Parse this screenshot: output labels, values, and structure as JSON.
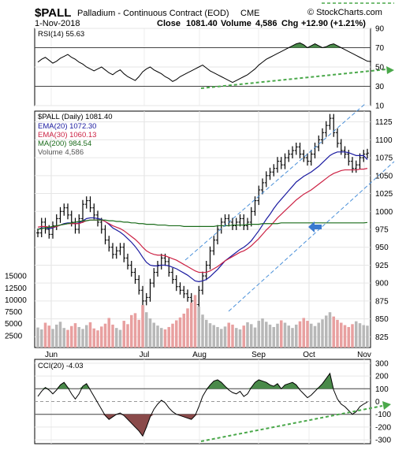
{
  "header": {
    "symbol": "$PALL",
    "description": "Palladium - Continuous Contract (EOD)",
    "exchange": "CME",
    "brand": "© StockCharts.com",
    "date": "1-Nov-2018",
    "close_label": "Close",
    "close_value": "1081.40",
    "volume_label": "Volume",
    "volume_value": "4,586",
    "chg_label": "Chg",
    "chg_value": "+12.90 (+1.21%)"
  },
  "panels": {
    "rsi_label": "RSI(14) 55.63",
    "price_label": "$PALL (Daily) 1081.40",
    "ema20_label": "EMA(20) 1072.30",
    "ema30_label": "EMA(30) 1060.13",
    "ma200_label": "MA(200) 984.54",
    "volume_label": "Volume 4,586",
    "cci_label": "CCI(20) -4.03"
  },
  "colors": {
    "price_bars": "#000000",
    "ema20": "#1a1aa0",
    "ema30": "#cc2244",
    "ma200": "#1a6b1a",
    "volume_bars": "#b8b8b8",
    "volume_down": "#e8a0a0",
    "overbought_fill": "#4a8a4a",
    "oversold_fill": "#8a4a4a",
    "trend_dashed": "#4a90d9",
    "support_dashed": "#4aa84a",
    "arrow": "#3a7ad0"
  },
  "chart_data": [
    {
      "type": "line",
      "name": "RSI(14)",
      "ylim": [
        10,
        90
      ],
      "yticks": [
        "90",
        "70",
        "50",
        "30",
        "10"
      ],
      "reference_lines": [
        70,
        30
      ],
      "last_value": 55.63,
      "y": [
        55,
        58,
        60,
        57,
        54,
        56,
        59,
        61,
        63,
        60,
        58,
        55,
        53,
        50,
        48,
        46,
        48,
        50,
        47,
        44,
        42,
        45,
        47,
        43,
        40,
        38,
        36,
        40,
        45,
        48,
        50,
        47,
        45,
        43,
        40,
        38,
        35,
        37,
        40,
        42,
        44,
        46,
        48,
        50,
        52,
        49,
        46,
        44,
        42,
        40,
        38,
        36,
        34,
        36,
        38,
        40,
        42,
        45,
        48,
        52,
        55,
        58,
        60,
        62,
        64,
        66,
        68,
        70,
        72,
        74,
        75,
        73,
        70,
        72,
        74,
        72,
        70,
        71,
        73,
        74,
        72,
        70,
        68,
        66,
        64,
        62,
        60,
        58,
        56,
        55.63
      ]
    },
    {
      "type": "line",
      "name": "$PALL (Daily)",
      "ylim": [
        810,
        1140
      ],
      "yticks": [
        825,
        850,
        875,
        900,
        925,
        950,
        975,
        1000,
        1025,
        1050,
        1075,
        1100,
        1125
      ],
      "xticks": [
        "Jun",
        "Jul",
        "Aug",
        "Sep",
        "Oct",
        "Nov"
      ],
      "series": [
        {
          "name": "$PALL (Daily)",
          "values": [
            970,
            985,
            975,
            968,
            980,
            990,
            1000,
            1005,
            995,
            985,
            975,
            990,
            1010,
            1015,
            1005,
            995,
            985,
            975,
            960,
            950,
            940,
            945,
            950,
            935,
            925,
            915,
            905,
            890,
            875,
            880,
            900,
            915,
            925,
            935,
            930,
            915,
            905,
            895,
            890,
            885,
            880,
            875,
            870,
            890,
            910,
            925,
            945,
            960,
            975,
            985,
            990,
            985,
            980,
            985,
            990,
            980,
            985,
            1000,
            1015,
            1030,
            1040,
            1050,
            1055,
            1060,
            1070,
            1065,
            1075,
            1080,
            1085,
            1090,
            1080,
            1075,
            1070,
            1080,
            1090,
            1100,
            1110,
            1120,
            1130,
            1110,
            1095,
            1085,
            1080,
            1070,
            1060,
            1065,
            1075,
            1080,
            1081.4
          ]
        },
        {
          "name": "EMA(20)",
          "values": [
            975,
            977,
            977,
            976,
            977,
            979,
            981,
            983,
            984,
            984,
            983,
            984,
            987,
            990,
            991,
            991,
            990,
            989,
            986,
            982,
            977,
            974,
            971,
            967,
            962,
            957,
            951,
            944,
            936,
            929,
            925,
            924,
            924,
            925,
            925,
            924,
            922,
            920,
            917,
            914,
            911,
            907,
            903,
            902,
            903,
            905,
            909,
            914,
            919,
            925,
            931,
            935,
            939,
            943,
            947,
            950,
            954,
            959,
            966,
            973,
            981,
            989,
            996,
            1004,
            1011,
            1017,
            1023,
            1029,
            1035,
            1041,
            1045,
            1049,
            1052,
            1055,
            1059,
            1063,
            1068,
            1073,
            1078,
            1081,
            1083,
            1083,
            1083,
            1082,
            1080,
            1078,
            1078,
            1078,
            1072.3
          ]
        },
        {
          "name": "EMA(30)",
          "values": [
            978,
            979,
            979,
            978,
            978,
            979,
            981,
            982,
            983,
            983,
            983,
            983,
            985,
            987,
            988,
            988,
            988,
            988,
            986,
            983,
            980,
            978,
            976,
            973,
            969,
            965,
            961,
            956,
            950,
            945,
            942,
            940,
            939,
            939,
            938,
            936,
            934,
            932,
            929,
            926,
            923,
            920,
            917,
            915,
            915,
            915,
            917,
            920,
            923,
            927,
            931,
            934,
            937,
            940,
            943,
            945,
            948,
            952,
            957,
            962,
            968,
            974,
            979,
            985,
            991,
            996,
            1001,
            1006,
            1011,
            1016,
            1020,
            1024,
            1027,
            1030,
            1034,
            1038,
            1042,
            1046,
            1050,
            1053,
            1055,
            1057,
            1058,
            1058,
            1058,
            1058,
            1059,
            1059,
            1060.13
          ]
        },
        {
          "name": "MA(200)",
          "values": [
            975,
            976,
            977,
            978,
            979,
            980,
            981,
            982,
            983,
            984,
            985,
            986,
            987,
            987,
            988,
            988,
            988,
            988,
            988,
            987,
            987,
            986,
            986,
            985,
            985,
            984,
            984,
            983,
            983,
            982,
            982,
            982,
            981,
            981,
            981,
            980,
            980,
            980,
            980,
            979,
            979,
            979,
            979,
            979,
            979,
            979,
            979,
            979,
            980,
            980,
            980,
            980,
            981,
            981,
            981,
            981,
            982,
            982,
            982,
            982,
            983,
            983,
            983,
            983,
            983,
            984,
            984,
            984,
            984,
            984,
            984,
            984,
            984,
            984,
            984,
            984,
            984,
            984,
            984,
            984,
            984,
            984,
            984,
            984,
            984,
            984,
            984,
            984,
            984.54
          ]
        }
      ]
    },
    {
      "type": "bar",
      "name": "Volume",
      "ylim": [
        0,
        17000
      ],
      "yticks": [
        "15000",
        "12500",
        "10000",
        "7500",
        "5000",
        "2500"
      ],
      "last_value": 4586,
      "values": [
        4200,
        3800,
        5200,
        4600,
        3900,
        4800,
        5400,
        4100,
        3700,
        4500,
        5100,
        4300,
        3900,
        4700,
        5300,
        4000,
        3600,
        4400,
        5000,
        6200,
        4800,
        4100,
        3700,
        5600,
        4900,
        6800,
        7200,
        5800,
        8900,
        7400,
        6100,
        5200,
        4600,
        4100,
        3800,
        4300,
        5000,
        5700,
        6300,
        7100,
        8200,
        9400,
        11000,
        8600,
        6900,
        5800,
        5100,
        4700,
        4300,
        3900,
        4400,
        5200,
        4800,
        4100,
        3800,
        4600,
        5300,
        4900,
        4200,
        5600,
        6100,
        5400,
        4800,
        4300,
        5000,
        5700,
        5200,
        4600,
        4100,
        4800,
        5500,
        6200,
        5600,
        5000,
        4500,
        5200,
        5900,
        6700,
        7400,
        6500,
        5800,
        5200,
        4700,
        4300,
        4900,
        5500,
        5100,
        4700,
        4586
      ]
    },
    {
      "type": "area",
      "name": "CCI(20)",
      "ylim": [
        -330,
        330
      ],
      "yticks": [
        "300",
        "200",
        "100",
        "0",
        "-100",
        "-200",
        "-300"
      ],
      "reference_lines": [
        100,
        -100
      ],
      "last_value": -4.03,
      "values": [
        40,
        80,
        110,
        90,
        60,
        90,
        130,
        150,
        110,
        60,
        20,
        60,
        120,
        140,
        90,
        40,
        -10,
        -60,
        -110,
        -140,
        -120,
        -100,
        -90,
        -110,
        -140,
        -170,
        -200,
        -230,
        -270,
        -200,
        -120,
        -60,
        -20,
        10,
        -10,
        -50,
        -80,
        -100,
        -110,
        -120,
        -130,
        -140,
        -110,
        -40,
        40,
        90,
        130,
        160,
        170,
        150,
        120,
        90,
        70,
        60,
        80,
        40,
        60,
        110,
        150,
        170,
        160,
        150,
        130,
        120,
        140,
        100,
        130,
        140,
        150,
        130,
        90,
        60,
        30,
        50,
        80,
        110,
        140,
        180,
        220,
        90,
        20,
        -20,
        -40,
        -70,
        -100,
        -80,
        -40,
        -20,
        -4.03
      ]
    }
  ]
}
